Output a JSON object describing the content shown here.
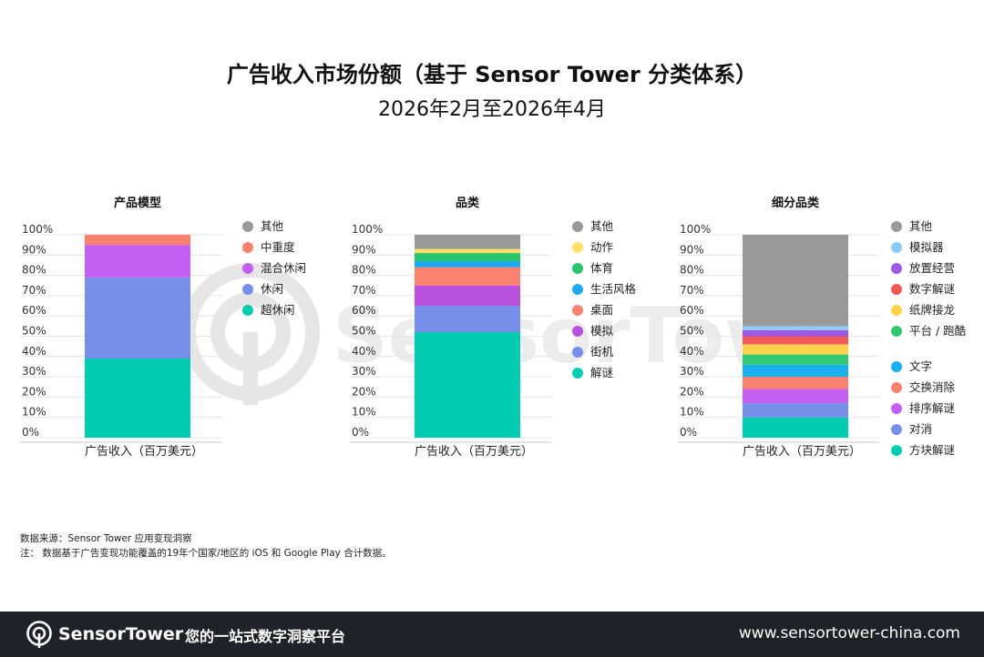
{
  "header": {
    "title": "广告收入市场份额（基于 Sensor Tower 分类体系）",
    "subtitle": "2026年2月至2026年4月"
  },
  "watermark": {
    "text": "SensorTower"
  },
  "colors": {
    "superCasual": "#00ccb2",
    "casual": "#7690ea",
    "hybridCasual": "#c55ef2",
    "midcore": "#fa8070",
    "other": "#999999",
    "puzzle": "#00ccb2",
    "arcade": "#7690ea",
    "simulation": "#b852de",
    "tabletop": "#fa8070",
    "lifestyle": "#1eaaf0",
    "sports": "#28c46e",
    "action": "#ffe066",
    "numberPuzzle": "#f25858",
    "solitaire": "#ffd24d",
    "platformRunner": "#34c772",
    "word": "#1ab0f0",
    "swapMatch": "#fa8070",
    "sortPuzzle": "#c55ef2",
    "match": "#7690ea",
    "idleTycoon": "#9b59e6",
    "simulator": "#8ec8f5",
    "blockPuzzle": "#00ccb2"
  },
  "chart_data": [
    {
      "type": "bar",
      "title": "产品模型",
      "xlabel": "广告收入（百万美元）",
      "ylabel": "",
      "ylim": [
        0,
        100
      ],
      "yticks": [
        "0%",
        "10%",
        "20%",
        "30%",
        "40%",
        "50%",
        "60%",
        "70%",
        "80%",
        "90%",
        "100%"
      ],
      "categories": [
        "广告收入（百万美元）"
      ],
      "series": [
        {
          "name": "超休闲",
          "values": [
            39
          ],
          "color": "#00ccb2"
        },
        {
          "name": "休闲",
          "values": [
            40
          ],
          "color": "#7690ea"
        },
        {
          "name": "混合休闲",
          "values": [
            16
          ],
          "color": "#c55ef2"
        },
        {
          "name": "中重度",
          "values": [
            5
          ],
          "color": "#fa8070"
        },
        {
          "name": "其他",
          "values": [
            0
          ],
          "color": "#999999"
        }
      ]
    },
    {
      "type": "bar",
      "title": "品类",
      "xlabel": "广告收入（百万美元）",
      "ylabel": "",
      "ylim": [
        0,
        100
      ],
      "yticks": [
        "0%",
        "10%",
        "20%",
        "30%",
        "40%",
        "50%",
        "60%",
        "70%",
        "80%",
        "90%",
        "100%"
      ],
      "categories": [
        "广告收入（百万美元）"
      ],
      "series": [
        {
          "name": "解谜",
          "values": [
            52
          ],
          "color": "#00ccb2"
        },
        {
          "name": "街机",
          "values": [
            13
          ],
          "color": "#7690ea"
        },
        {
          "name": "模拟",
          "values": [
            10
          ],
          "color": "#b852de"
        },
        {
          "name": "桌面",
          "values": [
            9
          ],
          "color": "#fa8070"
        },
        {
          "name": "生活风格",
          "values": [
            3
          ],
          "color": "#1eaaf0"
        },
        {
          "name": "体育",
          "values": [
            4
          ],
          "color": "#28c46e"
        },
        {
          "name": "动作",
          "values": [
            2
          ],
          "color": "#ffe066"
        },
        {
          "name": "其他",
          "values": [
            7
          ],
          "color": "#999999"
        }
      ]
    },
    {
      "type": "bar",
      "title": "细分品类",
      "xlabel": "广告收入（百万美元）",
      "ylabel": "",
      "ylim": [
        0,
        100
      ],
      "yticks": [
        "0%",
        "10%",
        "20%",
        "30%",
        "40%",
        "50%",
        "60%",
        "70%",
        "80%",
        "90%",
        "100%"
      ],
      "categories": [
        "广告收入（百万美元）"
      ],
      "series": [
        {
          "name": "方块解谜",
          "values": [
            10
          ],
          "color": "#00ccb2"
        },
        {
          "name": "对消",
          "values": [
            7
          ],
          "color": "#7690ea"
        },
        {
          "name": "排序解谜",
          "values": [
            7
          ],
          "color": "#c55ef2"
        },
        {
          "name": "交换消除",
          "values": [
            6
          ],
          "color": "#fa8070"
        },
        {
          "name": "文字",
          "values": [
            6
          ],
          "color": "#1ab0f0"
        },
        {
          "name": "平台 / 跑酷",
          "values": [
            5
          ],
          "color": "#34c772"
        },
        {
          "name": "纸牌接龙",
          "values": [
            5
          ],
          "color": "#ffd24d"
        },
        {
          "name": "数字解谜",
          "values": [
            4
          ],
          "color": "#f25858"
        },
        {
          "name": "放置经营",
          "values": [
            3
          ],
          "color": "#9b59e6"
        },
        {
          "name": "模拟器",
          "values": [
            2
          ],
          "color": "#8ec8f5"
        },
        {
          "name": "其他",
          "values": [
            45
          ],
          "color": "#999999"
        }
      ]
    }
  ],
  "notes": {
    "source": "数据来源：Sensor Tower 应用变现洞察",
    "note": "注：  数据基于广告变现功能覆盖的19年个国家/地区的 iOS 和 Google Play 合计数据。"
  },
  "footer": {
    "brand": "SensorTower",
    "slogan": "您的一站式数字洞察平台",
    "website": "www.sensortower-china.com"
  }
}
